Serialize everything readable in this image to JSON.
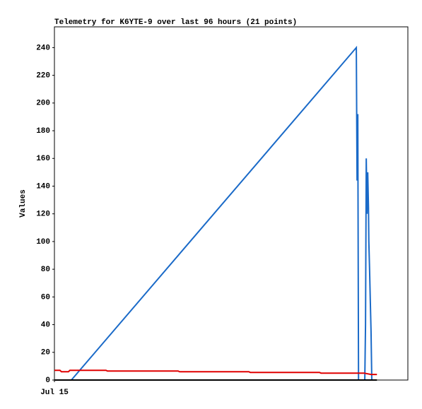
{
  "chart_data": {
    "type": "line",
    "title": "Telemetry for K6YTE-9 over last 96 hours (21 points)",
    "y_label": "Values",
    "xlim": [
      0,
      96
    ],
    "xticks": [
      {
        "value": 0,
        "label": "Jul 15"
      }
    ],
    "ylim": [
      0,
      255
    ],
    "yticks": [
      0,
      20,
      40,
      60,
      80,
      100,
      120,
      140,
      160,
      180,
      200,
      220,
      240
    ],
    "series": [
      {
        "color": "#1a6ac8",
        "x": [
          4.6,
          82.0,
          82.2,
          82.4,
          82.6,
          84.3,
          84.5,
          84.7,
          84.9,
          85.1,
          85.3,
          85.4,
          85.6,
          85.8,
          86.0,
          86.2
        ],
        "values": [
          0,
          240,
          144,
          192,
          0,
          0,
          40,
          160,
          120,
          150,
          125,
          100,
          80,
          57,
          35,
          0
        ]
      },
      {
        "color": "#e00000",
        "x": [
          0,
          1.5,
          1.9,
          3.8,
          4.2,
          14,
          14.4,
          33.6,
          34,
          52.8,
          53.2,
          72,
          72.4,
          84.1,
          86,
          87.6
        ],
        "values": [
          7,
          7,
          6,
          6,
          7,
          7,
          6.5,
          6.5,
          6,
          6,
          5.5,
          5.5,
          5,
          5,
          4,
          4
        ]
      },
      {
        "color": "#000000",
        "x": [
          0,
          87.6
        ],
        "values": [
          0,
          0
        ]
      }
    ]
  }
}
